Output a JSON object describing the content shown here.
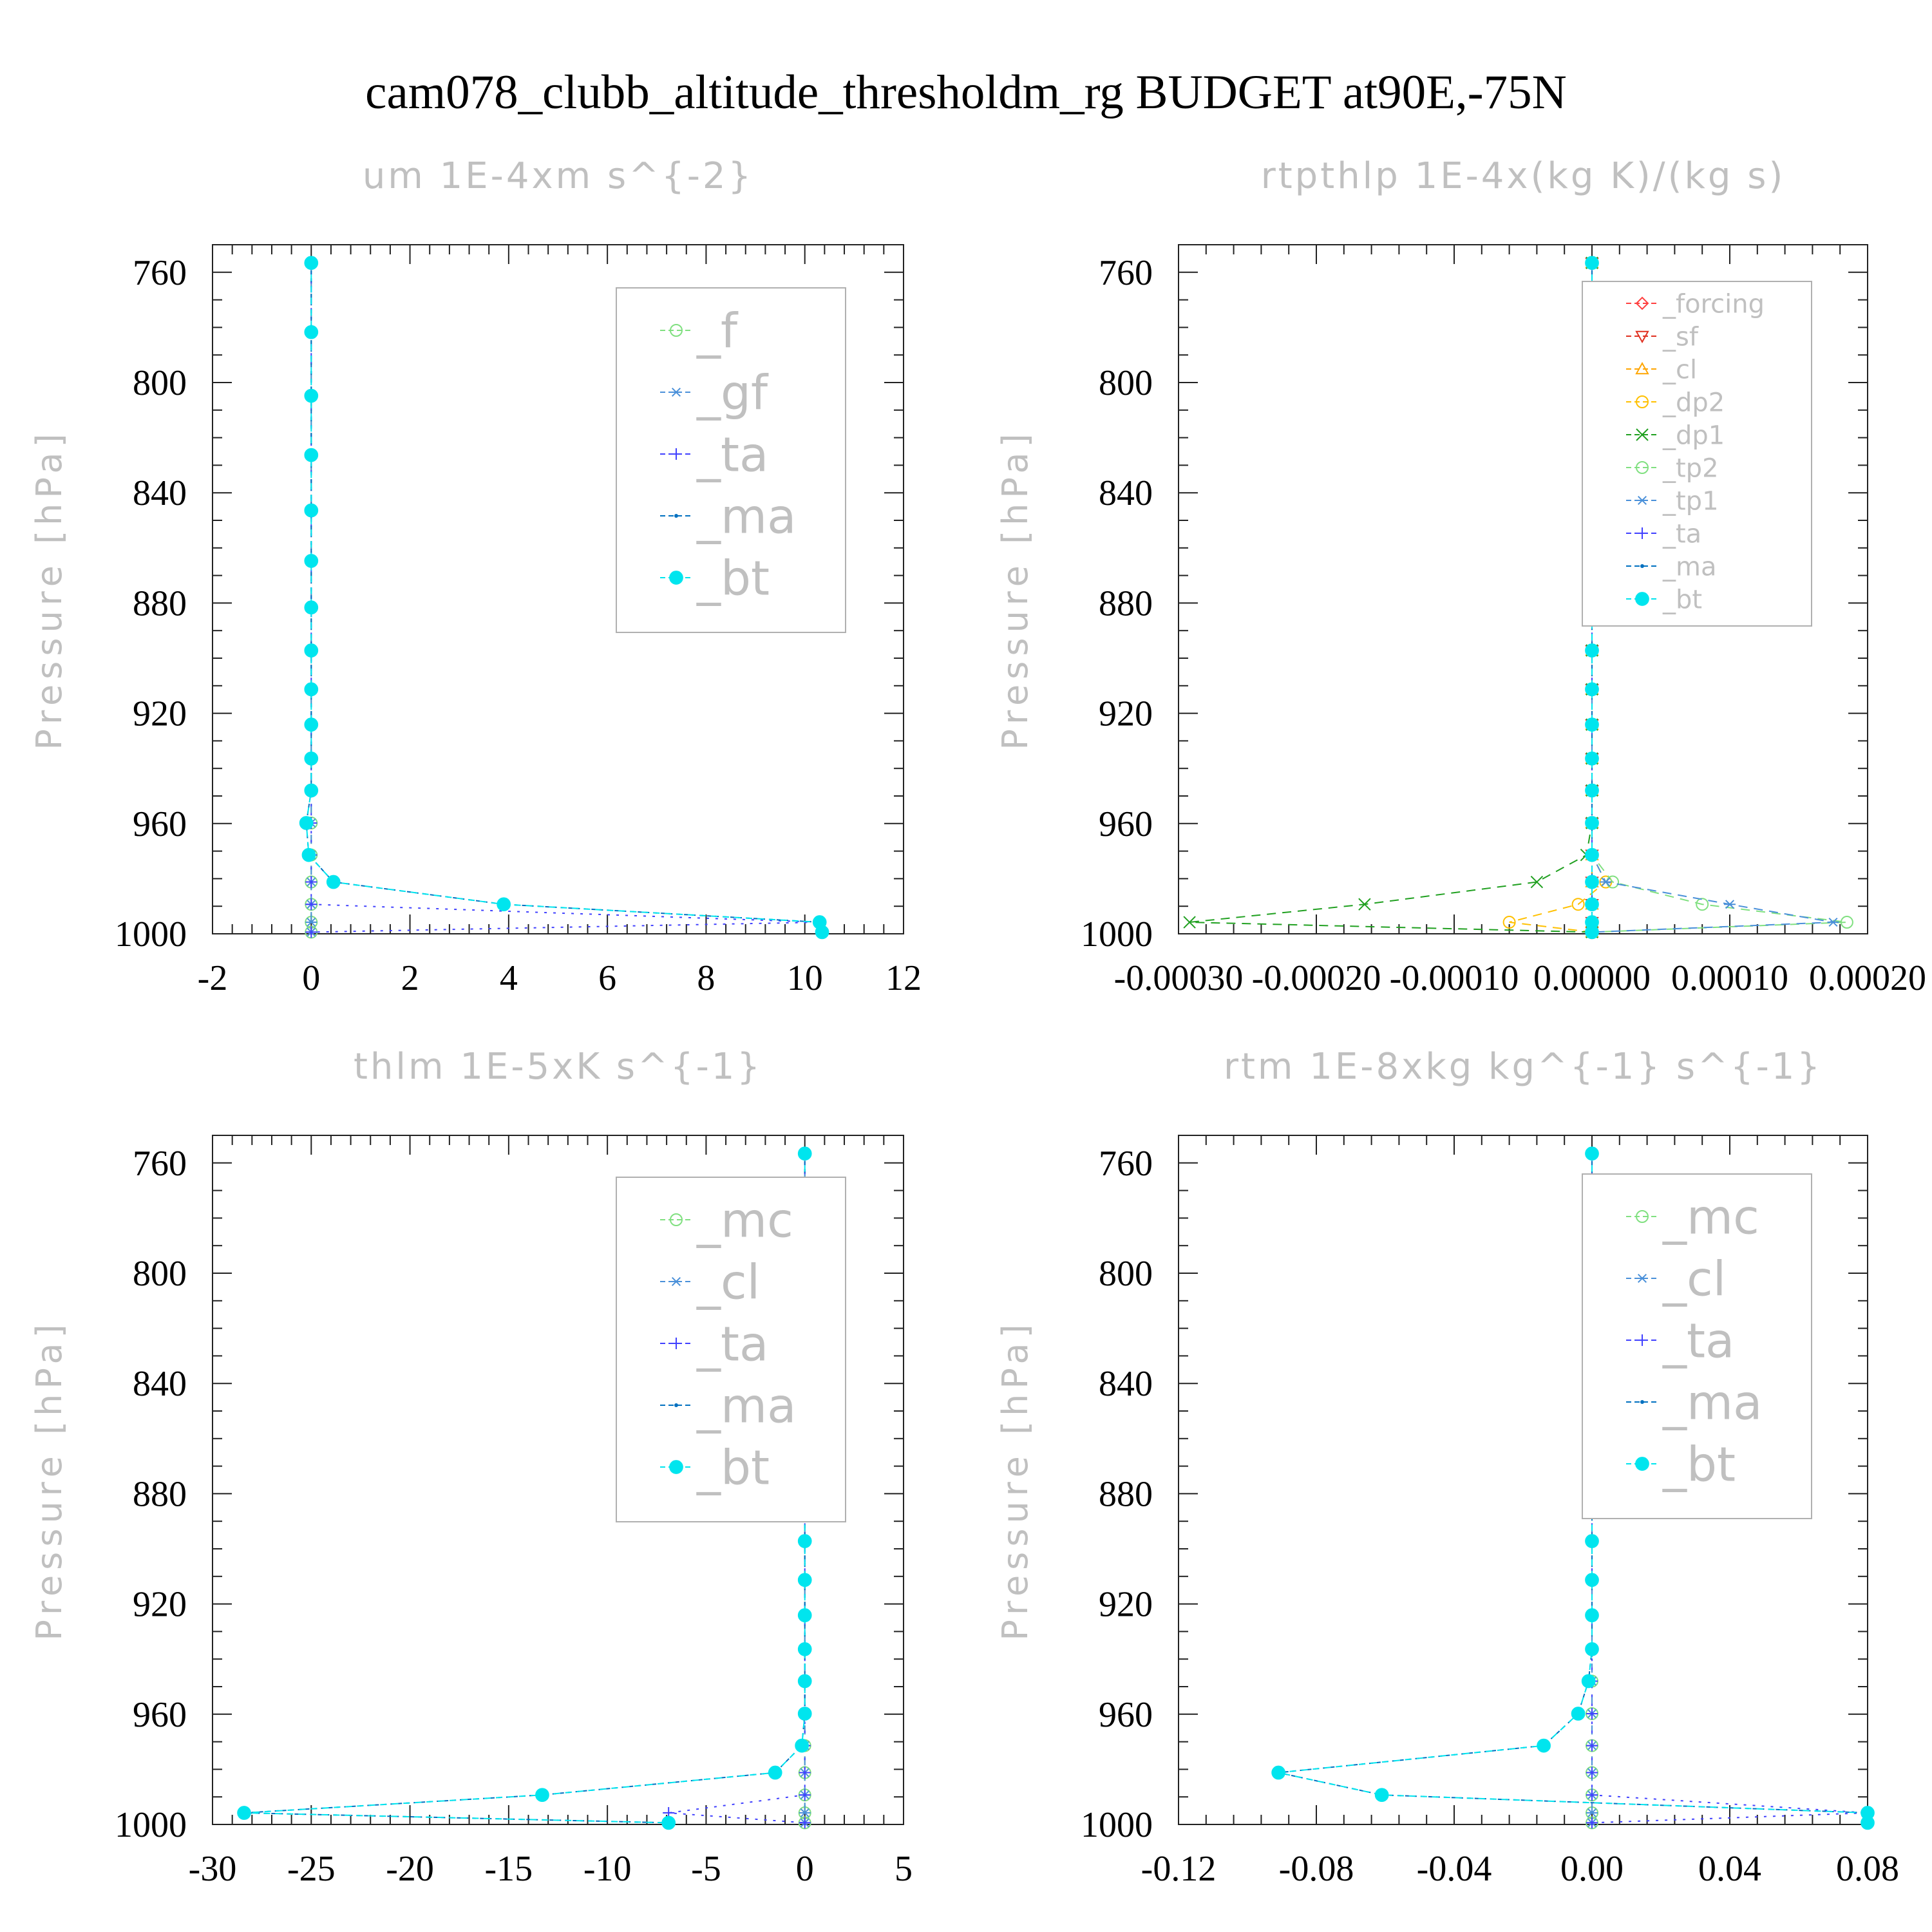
{
  "page_title": "cam078_clubb_altitude_thresholdm_rg  BUDGET at90E,-75N",
  "ylabel": "Pressure [hPa]",
  "y_ticks": [
    "760",
    "800",
    "840",
    "880",
    "920",
    "960",
    "1000"
  ],
  "levels": [
    756.6,
    781.7,
    804.8,
    826.3,
    846.4,
    864.7,
    881.6,
    897.2,
    911.3,
    924.1,
    936.4,
    948.0,
    959.8,
    971.4,
    981.2,
    989.3,
    995.8,
    999.4
  ],
  "colors": {
    "forcing": "#ff4040",
    "sf": "#e03020",
    "cl": "#3399ff",
    "cl_rtp": "#ffa500",
    "dp2": "#ffc000",
    "dp1": "#20a020",
    "tp2": "#80e080",
    "tp1": "#4a90d9",
    "ta": "#4040ff",
    "ma": "#0070c0",
    "bt": "#00e5ee",
    "f": "#80e080",
    "gf": "#4a90d9",
    "mc": "#80e080"
  },
  "chart_data": [
    {
      "type": "line",
      "title": "um  1E-4xm s^{-2}",
      "ylabel": "Pressure [hPa]",
      "xlim": [
        -2,
        12
      ],
      "ylim": [
        1000,
        750
      ],
      "x_ticks": [
        "-2",
        "0",
        "2",
        "4",
        "6",
        "8",
        "10",
        "12"
      ],
      "x_tick_values": [
        -2,
        0,
        2,
        4,
        6,
        8,
        10,
        12
      ],
      "legend_entries": [
        "_f",
        "_gf",
        "_ta",
        "_ma",
        "_bt"
      ],
      "series": [
        {
          "name": "_f",
          "color": "#80e080",
          "marker": "circle",
          "values": [
            0,
            0,
            0,
            0,
            0,
            0,
            0,
            0,
            0,
            0,
            0,
            0,
            0,
            0,
            0,
            0,
            0,
            0
          ]
        },
        {
          "name": "_gf",
          "color": "#4a90d9",
          "marker": "star",
          "values": [
            0,
            0,
            0,
            0,
            0,
            0,
            0,
            0,
            0,
            0,
            0,
            0,
            0,
            0,
            0,
            0,
            0,
            0
          ]
        },
        {
          "name": "_ta",
          "color": "#4040ff",
          "marker": "plus",
          "values": [
            0,
            0,
            0,
            0,
            0,
            0,
            0,
            0,
            0,
            0,
            0,
            0,
            0,
            0,
            0,
            0,
            10.3,
            0
          ]
        },
        {
          "name": "_ma",
          "color": "#0070c0",
          "marker": "dot",
          "values": [
            0,
            0,
            0,
            0,
            0,
            0,
            0,
            0,
            0,
            0,
            0,
            0,
            -0.1,
            -0.05,
            0.45,
            3.9,
            10.3,
            10.35
          ]
        },
        {
          "name": "_bt",
          "color": "#00e5ee",
          "marker": "filled",
          "values": [
            0,
            0,
            0,
            0,
            0,
            0,
            0,
            0,
            0,
            0,
            0,
            0,
            -0.1,
            -0.05,
            0.45,
            3.9,
            10.3,
            10.35
          ]
        }
      ]
    },
    {
      "type": "line",
      "title": "rtpthlp  1E-4x(kg K)/(kg s)",
      "ylabel": "Pressure [hPa]",
      "xlim": [
        -0.0003,
        0.0002
      ],
      "ylim": [
        1000,
        750
      ],
      "x_ticks": [
        "-0.00030",
        "-0.00020",
        "-0.00010",
        "0.00000",
        "0.00010",
        "0.00020"
      ],
      "x_tick_values": [
        -0.0003,
        -0.0002,
        -0.0001,
        0,
        0.0001,
        0.0002
      ],
      "legend_entries": [
        "_forcing",
        "_sf",
        "_cl",
        "_dp2",
        "_dp1",
        "_tp2",
        "_tp1",
        "_ta",
        "_ma",
        "_bt"
      ],
      "series": [
        {
          "name": "_forcing",
          "color": "#ff4040",
          "marker": "diamond",
          "values": [
            0,
            0,
            0,
            0,
            0,
            0,
            0,
            0,
            0,
            0,
            0,
            0,
            0,
            0,
            0,
            0,
            0,
            0
          ]
        },
        {
          "name": "_sf",
          "color": "#e03020",
          "marker": "triangle-down",
          "values": [
            0,
            0,
            0,
            0,
            0,
            0,
            0,
            0,
            0,
            0,
            0,
            0,
            0,
            0,
            0,
            0,
            0,
            0
          ]
        },
        {
          "name": "_cl",
          "color": "#ffa500",
          "marker": "triangle-up",
          "values": [
            0,
            0,
            0,
            0,
            0,
            0,
            0,
            0,
            0,
            0,
            0,
            0,
            0,
            0,
            0,
            0,
            0,
            0
          ]
        },
        {
          "name": "_dp2",
          "color": "#ffc000",
          "marker": "circle",
          "values": [
            0,
            0,
            0,
            0,
            0,
            0,
            0,
            0,
            0,
            0,
            0,
            0,
            0,
            0,
            1e-05,
            -1e-05,
            -6e-05,
            0
          ]
        },
        {
          "name": "_dp1",
          "color": "#20a020",
          "marker": "x",
          "values": [
            0,
            0,
            0,
            0,
            0,
            0,
            0,
            0,
            0,
            0,
            0,
            0,
            0,
            -4e-06,
            -4e-05,
            -0.000165,
            -0.000292,
            0
          ]
        },
        {
          "name": "_tp2",
          "color": "#80e080",
          "marker": "circle",
          "values": [
            0,
            0,
            0,
            0,
            0,
            0,
            0,
            0,
            0,
            0,
            0,
            0,
            0,
            0,
            1.5e-05,
            8e-05,
            0.000185,
            0
          ]
        },
        {
          "name": "_tp1",
          "color": "#4a90d9",
          "marker": "star",
          "values": [
            0,
            0,
            0,
            0,
            0,
            0,
            0,
            0,
            0,
            0,
            0,
            0,
            0,
            0,
            1e-05,
            0.0001,
            0.000175,
            0
          ]
        },
        {
          "name": "_ta",
          "color": "#4040ff",
          "marker": "plus",
          "values": [
            0,
            0,
            0,
            0,
            0,
            0,
            0,
            0,
            0,
            0,
            0,
            0,
            0,
            0,
            0,
            0,
            0,
            0
          ]
        },
        {
          "name": "_ma",
          "color": "#0070c0",
          "marker": "dot",
          "values": [
            0,
            0,
            0,
            0,
            0,
            0,
            0,
            0,
            0,
            0,
            0,
            0,
            0,
            0,
            0,
            0,
            0,
            0
          ]
        },
        {
          "name": "_bt",
          "color": "#00e5ee",
          "marker": "filled",
          "values": [
            0,
            0,
            0,
            0,
            0,
            0,
            0,
            0,
            0,
            0,
            0,
            0,
            0,
            0,
            0,
            0,
            0,
            0
          ]
        }
      ]
    },
    {
      "type": "line",
      "title": "thlm  1E-5xK s^{-1}",
      "ylabel": "Pressure [hPa]",
      "xlim": [
        -30,
        5
      ],
      "ylim": [
        1000,
        750
      ],
      "x_ticks": [
        "-30",
        "-25",
        "-20",
        "-15",
        "-10",
        "-5",
        "0",
        "5"
      ],
      "x_tick_values": [
        -30,
        -25,
        -20,
        -15,
        -10,
        -5,
        0,
        5
      ],
      "legend_entries": [
        "_mc",
        "_cl",
        "_ta",
        "_ma",
        "_bt"
      ],
      "series": [
        {
          "name": "_mc",
          "color": "#80e080",
          "marker": "circle",
          "values": [
            0,
            0,
            0,
            0,
            0,
            0,
            0,
            0,
            0,
            0,
            0,
            0,
            0,
            0,
            0,
            0,
            0,
            0
          ]
        },
        {
          "name": "_cl",
          "color": "#4a90d9",
          "marker": "star",
          "values": [
            0,
            0,
            0,
            0,
            0,
            0,
            0,
            0,
            0,
            0,
            0,
            0,
            0,
            0,
            0,
            0,
            0,
            0
          ]
        },
        {
          "name": "_ta",
          "color": "#4040ff",
          "marker": "plus",
          "values": [
            0,
            0,
            0,
            0,
            0,
            0,
            0,
            0,
            0,
            0,
            0,
            0,
            0,
            0,
            0,
            0,
            -6.9,
            0
          ]
        },
        {
          "name": "_ma",
          "color": "#0070c0",
          "marker": "dot",
          "values": [
            0,
            0,
            0,
            0,
            0,
            0,
            0,
            0,
            0,
            0,
            0,
            0,
            0,
            -0.15,
            -1.5,
            -13.3,
            -28.4,
            -6.9
          ]
        },
        {
          "name": "_bt",
          "color": "#00e5ee",
          "marker": "filled",
          "values": [
            0,
            0,
            0,
            0,
            0,
            0,
            0,
            0,
            0,
            0,
            0,
            0,
            0,
            -0.15,
            -1.5,
            -13.3,
            -28.4,
            -6.9
          ]
        }
      ]
    },
    {
      "type": "line",
      "title": "rtm  1E-8xkg kg^{-1} s^{-1}",
      "ylabel": "Pressure [hPa]",
      "xlim": [
        -0.12,
        0.08
      ],
      "ylim": [
        1000,
        750
      ],
      "x_ticks": [
        "-0.12",
        "-0.08",
        "-0.04",
        "0.00",
        "0.04",
        "0.08"
      ],
      "x_tick_values": [
        -0.12,
        -0.08,
        -0.04,
        0,
        0.04,
        0.08
      ],
      "legend_entries": [
        "_mc",
        "_cl",
        "_ta",
        "_ma",
        "_bt"
      ],
      "series": [
        {
          "name": "_mc",
          "color": "#80e080",
          "marker": "circle",
          "values": [
            0,
            0,
            0,
            0,
            0,
            0,
            0,
            0,
            0,
            0,
            0,
            0,
            0,
            0,
            0,
            0,
            0,
            0
          ]
        },
        {
          "name": "_cl",
          "color": "#4a90d9",
          "marker": "star",
          "values": [
            0,
            0,
            0,
            0,
            0,
            0,
            0,
            0,
            0,
            0,
            0,
            0,
            0,
            0,
            0,
            0,
            0,
            0
          ]
        },
        {
          "name": "_ta",
          "color": "#4040ff",
          "marker": "plus",
          "values": [
            0,
            0,
            0,
            0,
            0,
            0,
            0,
            0,
            0,
            0,
            0,
            0,
            0,
            0,
            0,
            0,
            0.08,
            0
          ]
        },
        {
          "name": "_ma",
          "color": "#0070c0",
          "marker": "dot",
          "values": [
            0,
            0,
            0,
            0,
            0,
            0,
            0,
            0,
            0,
            0,
            0,
            -0.001,
            -0.004,
            -0.014,
            -0.091,
            -0.061,
            0.08,
            0.08
          ]
        },
        {
          "name": "_bt",
          "color": "#00e5ee",
          "marker": "filled",
          "values": [
            0,
            0,
            0,
            0,
            0,
            0,
            0,
            0,
            0,
            0,
            0,
            -0.001,
            -0.004,
            -0.014,
            -0.091,
            -0.061,
            0.08,
            0.08
          ]
        }
      ]
    }
  ]
}
